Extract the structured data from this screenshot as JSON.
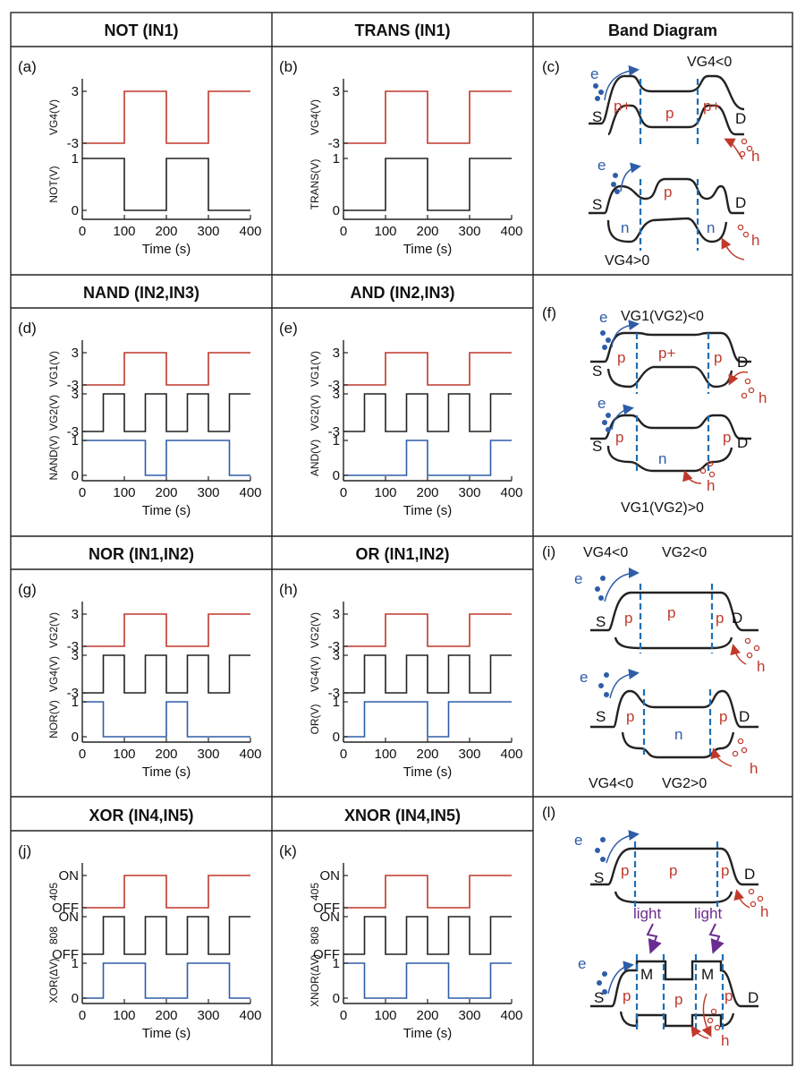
{
  "colors": {
    "red": "#c0392b",
    "black": "#222222",
    "blue": "#2e5da8",
    "dash": "#1d6fb5",
    "purple": "#6a2c91"
  },
  "headers": [
    "NOT (IN1)",
    "TRANS (IN1)",
    "Band Diagram",
    "NAND (IN2,IN3)",
    "AND (IN2,IN3)",
    "NOR (IN1,IN2)",
    "OR (IN1,IN2)",
    "XOR (IN4,IN5)",
    "XNOR (IN4,IN5)"
  ],
  "panel_labels": {
    "a": "(a)",
    "b": "(b)",
    "c": "(c)",
    "d": "(d)",
    "e": "(e)",
    "f": "(f)",
    "g": "(g)",
    "h": "(h)",
    "i": "(i)",
    "j": "(j)",
    "k": "(k)",
    "l": "(l)"
  },
  "axis": {
    "xlabel": "Time (s)",
    "xticks": [
      "0",
      "100",
      "200",
      "300",
      "400"
    ]
  },
  "band": {
    "c": {
      "top_label": "VG4<0",
      "bottom_label": "VG4>0",
      "top_regions": [
        "p+",
        "p",
        "p+"
      ],
      "bottom_regions": [
        "n",
        "p",
        "n"
      ]
    },
    "f": {
      "top_label": "VG1(VG2)<0",
      "bottom_label": "VG1(VG2)>0",
      "top_regions": [
        "p",
        "p+",
        "p"
      ],
      "bottom_regions": [
        "p",
        "n",
        "p"
      ]
    },
    "i": {
      "top_label_1": "VG4<0",
      "top_label_2": "VG2<0",
      "bottom_label_1": "VG4<0",
      "bottom_label_2": "VG2>0",
      "top_regions": [
        "p",
        "p",
        "p"
      ],
      "bottom_regions": [
        "p",
        "n",
        "p"
      ]
    },
    "l": {
      "top_regions": [
        "p",
        "p",
        "p"
      ],
      "bottom_regions": [
        "p",
        "M",
        "p",
        "M",
        "p"
      ],
      "light": "light"
    },
    "carriers": {
      "e": "e",
      "h": "h",
      "S": "S",
      "D": "D"
    }
  },
  "chart_data": [
    {
      "panel": "a",
      "type": "line",
      "xlabel": "Time (s)",
      "xlim": [
        0,
        400
      ],
      "series": [
        {
          "ylabel": "VG4(V)",
          "yticks": [
            "3",
            "-3"
          ],
          "x": [
            0,
            100,
            100,
            200,
            200,
            300,
            300,
            400
          ],
          "y": [
            -3,
            -3,
            3,
            3,
            -3,
            -3,
            3,
            3
          ]
        },
        {
          "ylabel": "NOT(V)",
          "yticks": [
            "1",
            "0"
          ],
          "x": [
            0,
            100,
            100,
            200,
            200,
            300,
            300,
            400
          ],
          "y": [
            1,
            1,
            0,
            0,
            1,
            1,
            0,
            0
          ]
        }
      ]
    },
    {
      "panel": "b",
      "type": "line",
      "xlabel": "Time (s)",
      "xlim": [
        0,
        400
      ],
      "series": [
        {
          "ylabel": "VG4(V)",
          "yticks": [
            "3",
            "-3"
          ],
          "x": [
            0,
            100,
            100,
            200,
            200,
            300,
            300,
            400
          ],
          "y": [
            -3,
            -3,
            3,
            3,
            -3,
            -3,
            3,
            3
          ]
        },
        {
          "ylabel": "TRANS(V)",
          "yticks": [
            "1",
            "0"
          ],
          "x": [
            0,
            100,
            100,
            200,
            200,
            300,
            300,
            400
          ],
          "y": [
            0,
            0,
            1,
            1,
            0,
            0,
            1,
            1
          ]
        }
      ]
    },
    {
      "panel": "d",
      "type": "line",
      "xlabel": "Time (s)",
      "xlim": [
        0,
        400
      ],
      "series": [
        {
          "ylabel": "VG1(V)",
          "yticks": [
            "3",
            "-3"
          ],
          "x": [
            0,
            100,
            100,
            200,
            200,
            300,
            300,
            400
          ],
          "y": [
            -3,
            -3,
            3,
            3,
            -3,
            -3,
            3,
            3
          ]
        },
        {
          "ylabel": "VG2(V)",
          "yticks": [
            "3",
            "-3"
          ],
          "x": [
            0,
            50,
            50,
            100,
            100,
            150,
            150,
            200,
            200,
            250,
            250,
            300,
            300,
            350,
            350,
            400
          ],
          "y": [
            -3,
            -3,
            3,
            3,
            -3,
            -3,
            3,
            3,
            -3,
            -3,
            3,
            3,
            -3,
            -3,
            3,
            3
          ]
        },
        {
          "ylabel": "NAND(V)",
          "yticks": [
            "1",
            "0"
          ],
          "x": [
            0,
            150,
            150,
            200,
            200,
            350,
            350,
            400
          ],
          "y": [
            1,
            1,
            0,
            0,
            1,
            1,
            0,
            0
          ]
        }
      ]
    },
    {
      "panel": "e",
      "type": "line",
      "xlabel": "Time (s)",
      "xlim": [
        0,
        400
      ],
      "series": [
        {
          "ylabel": "VG1(V)",
          "yticks": [
            "3",
            "-3"
          ],
          "x": [
            0,
            100,
            100,
            200,
            200,
            300,
            300,
            400
          ],
          "y": [
            -3,
            -3,
            3,
            3,
            -3,
            -3,
            3,
            3
          ]
        },
        {
          "ylabel": "VG2(V)",
          "yticks": [
            "3",
            "-3"
          ],
          "x": [
            0,
            50,
            50,
            100,
            100,
            150,
            150,
            200,
            200,
            250,
            250,
            300,
            300,
            350,
            350,
            400
          ],
          "y": [
            -3,
            -3,
            3,
            3,
            -3,
            -3,
            3,
            3,
            -3,
            -3,
            3,
            3,
            -3,
            -3,
            3,
            3
          ]
        },
        {
          "ylabel": "AND(V)",
          "yticks": [
            "1",
            "0"
          ],
          "x": [
            0,
            150,
            150,
            200,
            200,
            350,
            350,
            400
          ],
          "y": [
            0,
            0,
            1,
            1,
            0,
            0,
            1,
            1
          ]
        }
      ]
    },
    {
      "panel": "g",
      "type": "line",
      "xlabel": "Time (s)",
      "xlim": [
        0,
        400
      ],
      "series": [
        {
          "ylabel": "VG2(V)",
          "yticks": [
            "3",
            "-3"
          ],
          "x": [
            0,
            100,
            100,
            200,
            200,
            300,
            300,
            400
          ],
          "y": [
            -3,
            -3,
            3,
            3,
            -3,
            -3,
            3,
            3
          ]
        },
        {
          "ylabel": "VG4(V)",
          "yticks": [
            "3",
            "-3"
          ],
          "x": [
            0,
            50,
            50,
            100,
            100,
            150,
            150,
            200,
            200,
            250,
            250,
            300,
            300,
            350,
            350,
            400
          ],
          "y": [
            -3,
            -3,
            3,
            3,
            -3,
            -3,
            3,
            3,
            -3,
            -3,
            3,
            3,
            -3,
            -3,
            3,
            3
          ]
        },
        {
          "ylabel": "NOR(V)",
          "yticks": [
            "1",
            "0"
          ],
          "x": [
            0,
            50,
            50,
            200,
            200,
            250,
            250,
            400
          ],
          "y": [
            1,
            1,
            0,
            0,
            1,
            1,
            0,
            0
          ]
        }
      ]
    },
    {
      "panel": "h",
      "type": "line",
      "xlabel": "Time (s)",
      "xlim": [
        0,
        400
      ],
      "series": [
        {
          "ylabel": "VG2(V)",
          "yticks": [
            "3",
            "-3"
          ],
          "x": [
            0,
            100,
            100,
            200,
            200,
            300,
            300,
            400
          ],
          "y": [
            -3,
            -3,
            3,
            3,
            -3,
            -3,
            3,
            3
          ]
        },
        {
          "ylabel": "VG4(V)",
          "yticks": [
            "3",
            "-3"
          ],
          "x": [
            0,
            50,
            50,
            100,
            100,
            150,
            150,
            200,
            200,
            250,
            250,
            300,
            300,
            350,
            350,
            400
          ],
          "y": [
            -3,
            -3,
            3,
            3,
            -3,
            -3,
            3,
            3,
            -3,
            -3,
            3,
            3,
            -3,
            -3,
            3,
            3
          ]
        },
        {
          "ylabel": "OR(V)",
          "yticks": [
            "1",
            "0"
          ],
          "x": [
            0,
            50,
            50,
            200,
            200,
            250,
            250,
            400
          ],
          "y": [
            0,
            0,
            1,
            1,
            0,
            0,
            1,
            1
          ]
        }
      ]
    },
    {
      "panel": "j",
      "type": "line",
      "xlabel": "Time (s)",
      "xlim": [
        0,
        400
      ],
      "series": [
        {
          "ylabel": "405",
          "yticks": [
            "ON",
            "OFF"
          ],
          "x": [
            0,
            100,
            100,
            200,
            200,
            300,
            300,
            400
          ],
          "y": [
            0,
            0,
            1,
            1,
            0,
            0,
            1,
            1
          ]
        },
        {
          "ylabel": "808",
          "yticks": [
            "ON",
            "OFF"
          ],
          "x": [
            0,
            50,
            50,
            100,
            100,
            150,
            150,
            200,
            200,
            250,
            250,
            300,
            300,
            350,
            350,
            400
          ],
          "y": [
            0,
            0,
            1,
            1,
            0,
            0,
            1,
            1,
            0,
            0,
            1,
            1,
            0,
            0,
            1,
            1
          ]
        },
        {
          "ylabel": "XOR(ΔV)",
          "yticks": [
            "1",
            "0"
          ],
          "x": [
            0,
            50,
            50,
            100,
            100,
            150,
            150,
            250,
            250,
            300,
            300,
            350,
            350,
            400
          ],
          "y": [
            0,
            0,
            1,
            1,
            1,
            1,
            0,
            0,
            1,
            1,
            1,
            1,
            0,
            0
          ]
        }
      ]
    },
    {
      "panel": "k",
      "type": "line",
      "xlabel": "Time (s)",
      "xlim": [
        0,
        400
      ],
      "series": [
        {
          "ylabel": "405",
          "yticks": [
            "ON",
            "OFF"
          ],
          "x": [
            0,
            100,
            100,
            200,
            200,
            300,
            300,
            400
          ],
          "y": [
            0,
            0,
            1,
            1,
            0,
            0,
            1,
            1
          ]
        },
        {
          "ylabel": "808",
          "yticks": [
            "ON",
            "OFF"
          ],
          "x": [
            0,
            50,
            50,
            100,
            100,
            150,
            150,
            200,
            200,
            250,
            250,
            300,
            300,
            350,
            350,
            400
          ],
          "y": [
            0,
            0,
            1,
            1,
            0,
            0,
            1,
            1,
            0,
            0,
            1,
            1,
            0,
            0,
            1,
            1
          ]
        },
        {
          "ylabel": "XNOR(ΔV)",
          "yticks": [
            "1",
            "0"
          ],
          "x": [
            0,
            50,
            50,
            100,
            100,
            150,
            150,
            250,
            250,
            300,
            300,
            350,
            350,
            400
          ],
          "y": [
            1,
            1,
            0,
            0,
            0,
            0,
            1,
            1,
            0,
            0,
            0,
            0,
            1,
            1
          ]
        }
      ]
    }
  ]
}
